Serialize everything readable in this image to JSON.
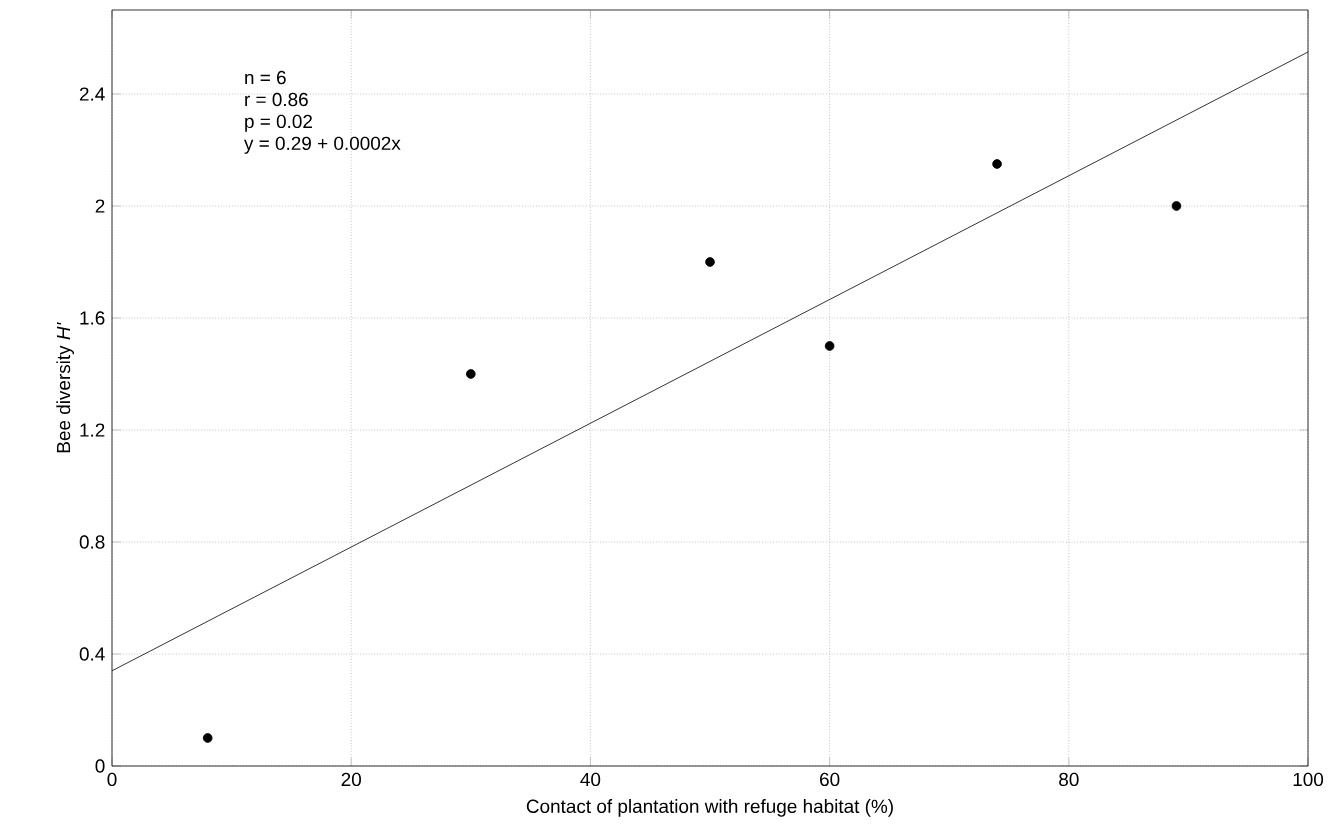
{
  "chart_data": {
    "type": "scatter",
    "xlabel": "Contact of plantation with refuge habitat (%)",
    "ylabel": "Bee diversity *H'*",
    "xlim": [
      0,
      100
    ],
    "ylim": [
      0,
      2.7
    ],
    "xticks": [
      0,
      20,
      40,
      60,
      80,
      100
    ],
    "yticks": [
      0,
      0.4,
      0.8,
      1.2,
      1.6,
      2,
      2.4
    ],
    "grid": true,
    "series": [
      {
        "color": "#000000",
        "marker": "circle",
        "x": [
          8,
          30,
          50,
          60,
          74,
          89
        ],
        "values": [
          0.1,
          1.4,
          1.8,
          1.5,
          2.15,
          2.0
        ]
      },
      {
        "type": "line",
        "color": "#000000",
        "marker": "none",
        "x": [
          0,
          100
        ],
        "values": [
          0.34,
          2.55
        ]
      }
    ],
    "annotations": [
      "n = 6",
      "r = 0.86",
      "p = 0.02",
      "y = 0.29 + 0.0002x"
    ]
  }
}
